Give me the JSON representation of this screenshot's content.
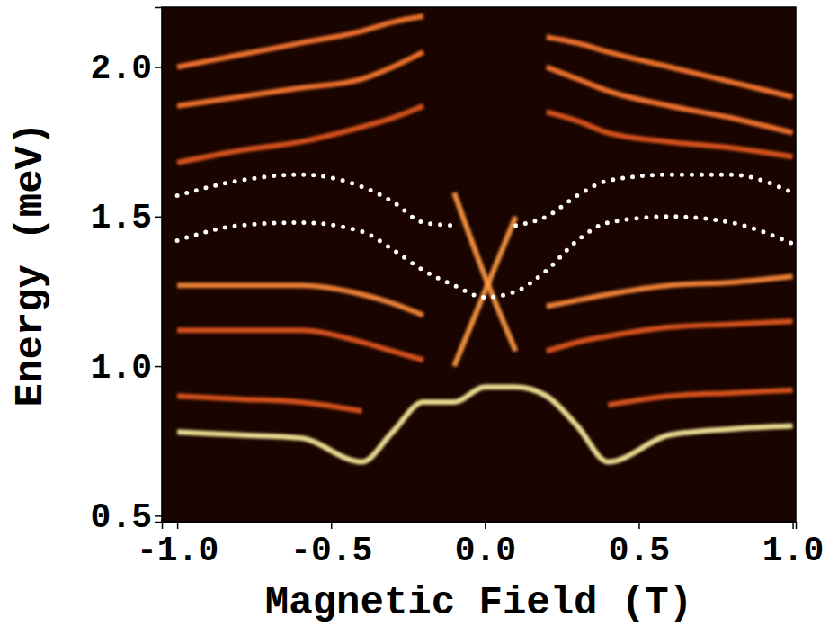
{
  "chart_data": {
    "type": "line",
    "x_label": "Magnetic Field (T)",
    "y_label": "Energy (meV)",
    "xlim": [
      -1.05,
      1.01
    ],
    "ylim": [
      0.48,
      2.2
    ],
    "xticks": [
      {
        "value": -1.0,
        "label": "-1.0"
      },
      {
        "value": -0.5,
        "label": "-0.5"
      },
      {
        "value": 0.0,
        "label": "0.0"
      },
      {
        "value": 0.5,
        "label": "0.5"
      },
      {
        "value": 1.0,
        "label": "1.0"
      }
    ],
    "yticks": [
      {
        "value": 0.5,
        "label": "0.5"
      },
      {
        "value": 1.0,
        "label": "1.0"
      },
      {
        "value": 1.5,
        "label": "1.5"
      },
      {
        "value": 2.0,
        "label": "2.0"
      }
    ],
    "x": [
      -1.0,
      -0.8,
      -0.6,
      -0.4,
      -0.3,
      -0.2,
      -0.1,
      0.0,
      0.1,
      0.2,
      0.3,
      0.4,
      0.6,
      0.8,
      1.0
    ],
    "series": [
      {
        "color": "#ff7a30",
        "line_style": "solid",
        "values": [
          2.0,
          2.04,
          2.08,
          2.12,
          2.15,
          2.17,
          null,
          null,
          null,
          2.1,
          2.08,
          2.05,
          2.0,
          1.95,
          1.9
        ]
      },
      {
        "color": "#ff7a30",
        "line_style": "solid",
        "values": [
          1.87,
          1.9,
          1.93,
          1.96,
          2.0,
          2.05,
          null,
          null,
          null,
          2.0,
          1.96,
          1.92,
          1.87,
          1.83,
          1.78
        ]
      },
      {
        "color": "#e85a20",
        "line_style": "solid",
        "values": [
          1.68,
          1.72,
          1.75,
          1.8,
          1.83,
          1.87,
          null,
          null,
          null,
          1.85,
          1.82,
          1.78,
          1.75,
          1.73,
          1.7
        ]
      },
      {
        "color": "#ff8c3a",
        "line_style": "solid",
        "values": [
          1.27,
          1.27,
          1.27,
          1.24,
          1.21,
          1.17,
          null,
          null,
          null,
          1.2,
          1.22,
          1.24,
          1.27,
          1.28,
          1.3
        ]
      },
      {
        "color": "#e85a20",
        "line_style": "solid",
        "values": [
          1.12,
          1.12,
          1.12,
          1.08,
          1.05,
          1.02,
          null,
          null,
          null,
          1.05,
          1.08,
          1.1,
          1.13,
          1.14,
          1.15
        ]
      },
      {
        "color": "#e85a20",
        "line_style": "solid",
        "values": [
          0.9,
          0.89,
          0.88,
          0.85,
          null,
          null,
          null,
          null,
          null,
          null,
          null,
          0.87,
          0.9,
          0.91,
          0.92
        ]
      },
      {
        "color": "#ff9a40",
        "line_style": "solid",
        "values": [
          null,
          null,
          null,
          null,
          null,
          null,
          1.58,
          1.3,
          1.05,
          null,
          null,
          null,
          null,
          null,
          null
        ]
      },
      {
        "color": "#ff9a40",
        "line_style": "solid",
        "values": [
          null,
          null,
          null,
          null,
          null,
          null,
          1.0,
          1.25,
          1.5,
          null,
          null,
          null,
          null,
          null,
          null
        ]
      },
      {
        "color": "#fff2a0",
        "line_style": "solid",
        "values": [
          0.78,
          0.77,
          0.76,
          0.68,
          0.78,
          0.88,
          0.88,
          0.93,
          0.93,
          0.9,
          0.8,
          0.68,
          0.77,
          0.79,
          0.8
        ]
      },
      {
        "color": "#ffffff",
        "line_style": "dotted",
        "values": [
          1.57,
          1.62,
          1.64,
          1.6,
          1.55,
          1.48,
          1.47,
          null,
          1.47,
          1.5,
          1.57,
          1.62,
          1.64,
          1.64,
          1.58
        ]
      },
      {
        "color": "#ffffff",
        "line_style": "dotted",
        "values": [
          1.42,
          1.47,
          1.48,
          1.45,
          1.39,
          1.32,
          1.27,
          1.23,
          1.25,
          1.32,
          1.42,
          1.48,
          1.5,
          1.48,
          1.41
        ]
      }
    ]
  }
}
